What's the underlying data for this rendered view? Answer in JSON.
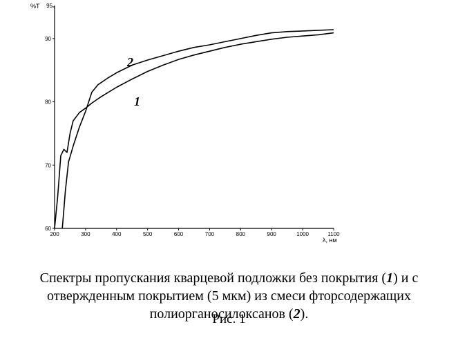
{
  "chart_data": {
    "type": "line",
    "xlabel": "λ, нм",
    "ylabel": "%T",
    "xlim": [
      200,
      1100
    ],
    "ylim": [
      60,
      95
    ],
    "x_ticks": [
      200,
      300,
      400,
      500,
      600,
      700,
      800,
      900,
      1000,
      1100
    ],
    "y_ticks": [
      60,
      70,
      80,
      90,
      95
    ],
    "grid": false,
    "series": [
      {
        "name": "1",
        "x": [
          200,
          210,
          220,
          230,
          240,
          250,
          260,
          280,
          300,
          320,
          350,
          400,
          450,
          500,
          550,
          600,
          650,
          700,
          750,
          800,
          850,
          900,
          950,
          1000,
          1050,
          1100
        ],
        "y": [
          60,
          65,
          71.5,
          72.5,
          72,
          75,
          77,
          78.3,
          79,
          79.8,
          80.8,
          82.3,
          83.6,
          84.8,
          85.8,
          86.7,
          87.4,
          88,
          88.6,
          89.1,
          89.5,
          89.9,
          90.2,
          90.4,
          90.6,
          90.9
        ]
      },
      {
        "name": "2",
        "x": [
          225,
          235,
          245,
          260,
          280,
          300,
          320,
          340,
          370,
          400,
          450,
          500,
          550,
          600,
          650,
          700,
          750,
          800,
          850,
          900,
          950,
          1000,
          1050,
          1100
        ],
        "y": [
          60,
          66,
          70.5,
          73,
          76,
          78.5,
          81.5,
          82.7,
          83.7,
          84.6,
          85.8,
          86.6,
          87.3,
          88,
          88.6,
          89,
          89.5,
          90,
          90.5,
          90.9,
          91.1,
          91.2,
          91.3,
          91.4
        ]
      }
    ]
  },
  "labels": {
    "y_axis": "%T",
    "x_axis": "λ, нм",
    "curve1": "1",
    "curve2": "2"
  },
  "caption": {
    "line1_a": "Спектры пропускания кварцевой подложки без покрытия (",
    "line1_num": "1",
    "line1_b": ") и с",
    "line2": "отвержденным покрытием (5 мкм) из смеси фторсодержащих",
    "line3_a": "полиорганосилоксанов (",
    "line3_num": "2",
    "line3_b": ")."
  },
  "figure_label": "Рис. 1"
}
